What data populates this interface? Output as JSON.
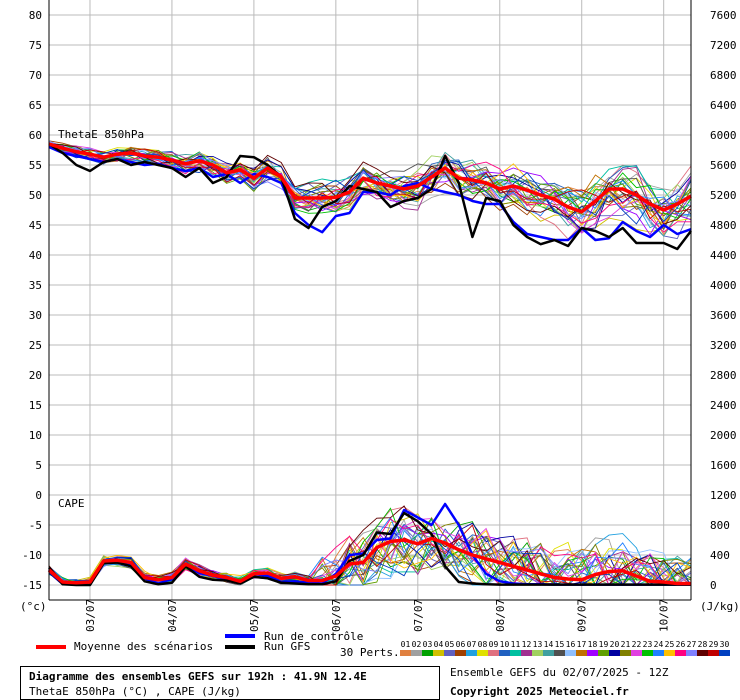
{
  "chart_data": {
    "type": "line",
    "title": "Diagramme des ensembles GEFS sur 192h : 41.9N 12.4E",
    "subtitle": "ThetaE 850hPa (°C) , CAPE (J/kg)",
    "left_axis": {
      "unit": "(°c)",
      "ticks": [
        80,
        75,
        70,
        65,
        60,
        55,
        50,
        45,
        40,
        35,
        30,
        25,
        20,
        15,
        10,
        5,
        0,
        -5,
        -10,
        -15
      ]
    },
    "right_axis": {
      "unit": "(J/kg)",
      "ticks": [
        7600,
        7200,
        6800,
        6400,
        6000,
        5600,
        5200,
        4800,
        4400,
        4000,
        3600,
        3200,
        2800,
        2400,
        2000,
        1600,
        1200,
        800,
        400,
        0
      ]
    },
    "x_dates": [
      "03/07",
      "04/07",
      "05/07",
      "06/07",
      "07/07",
      "08/07",
      "09/07",
      "10/07"
    ],
    "panel_labels": {
      "thetae": "ThetaE 850hPa",
      "cape": "CAPE"
    },
    "series": [
      {
        "name": "Moyenne des scénarios",
        "color": "#ff0000",
        "thetae": [
          58.5,
          57.8,
          57.2,
          56.8,
          56.3,
          56.8,
          57.0,
          56.5,
          56.3,
          55.8,
          55.2,
          55.7,
          55.0,
          53.7,
          54.2,
          52.8,
          54.5,
          53.0,
          49.5,
          49.5,
          49.5,
          49.6,
          50.5,
          52.8,
          52.0,
          51.5,
          51.0,
          51.5,
          53.0,
          54.5,
          52.8,
          52.5,
          52.0,
          51.0,
          51.5,
          50.8,
          50.0,
          49.3,
          48.0,
          47.2,
          49.0,
          51.0,
          51.0,
          50.0,
          48.5,
          47.5,
          48.5,
          49.8
        ],
        "cape": [
          200,
          40,
          30,
          40,
          320,
          330,
          300,
          100,
          70,
          100,
          280,
          190,
          130,
          100,
          50,
          150,
          160,
          90,
          110,
          60,
          60,
          120,
          280,
          300,
          500,
          580,
          600,
          550,
          620,
          560,
          470,
          400,
          350,
          300,
          250,
          200,
          150,
          100,
          80,
          70,
          140,
          180,
          190,
          120,
          50,
          40,
          20,
          20
        ]
      },
      {
        "name": "Run de contrôle",
        "color": "#0000ff",
        "thetae": [
          58.0,
          57.0,
          56.5,
          56.0,
          55.5,
          56.0,
          55.5,
          55.0,
          55.2,
          54.5,
          54.0,
          54.5,
          53.0,
          53.5,
          52.0,
          53.5,
          53.0,
          52.0,
          47.0,
          45.0,
          43.8,
          46.5,
          47.0,
          50.5,
          50.5,
          50.0,
          51.5,
          52.0,
          51.0,
          50.5,
          50.0,
          49.0,
          48.5,
          48.5,
          45.5,
          43.5,
          43.0,
          42.5,
          42.5,
          44.5,
          42.5,
          42.8,
          45.5,
          44.0,
          43.0,
          45.0,
          43.5,
          44.3
        ],
        "cape": [
          210,
          20,
          10,
          40,
          320,
          320,
          260,
          90,
          20,
          80,
          270,
          160,
          120,
          80,
          30,
          150,
          120,
          40,
          50,
          30,
          20,
          150,
          400,
          420,
          600,
          620,
          1000,
          900,
          800,
          1080,
          800,
          400,
          150,
          50,
          20,
          10,
          10,
          5,
          5,
          5,
          5,
          5,
          5,
          5,
          5,
          5,
          5,
          5
        ]
      },
      {
        "name": "Run GFS",
        "color": "#000000",
        "thetae": [
          58.5,
          57.0,
          55.0,
          54.0,
          55.5,
          56.0,
          55.0,
          55.5,
          55.0,
          54.5,
          53.0,
          54.5,
          52.0,
          53.0,
          56.5,
          56.3,
          55.0,
          53.0,
          46.0,
          44.5,
          48.0,
          49.0,
          51.5,
          51.0,
          50.5,
          48.0,
          49.0,
          49.5,
          51.0,
          56.5,
          52.0,
          43.0,
          49.5,
          49.0,
          45.0,
          43.0,
          41.8,
          42.5,
          41.5,
          44.5,
          44.0,
          43.0,
          44.5,
          42.0,
          42.0,
          42.0,
          41.0,
          44.0
        ],
        "cape": [
          230,
          10,
          0,
          0,
          290,
          300,
          250,
          50,
          10,
          30,
          250,
          110,
          70,
          60,
          20,
          110,
          90,
          30,
          20,
          10,
          10,
          50,
          320,
          400,
          700,
          680,
          960,
          850,
          680,
          250,
          40,
          20,
          10,
          5,
          5,
          5,
          5,
          5,
          5,
          5,
          5,
          5,
          5,
          5,
          5,
          5,
          5,
          5
        ]
      }
    ],
    "xlim": [
      0,
      47
    ],
    "left_ylim": [
      -17.5,
      82.5
    ],
    "right_ylim": [
      -200,
      7800
    ]
  },
  "legend": {
    "mean": "Moyenne des scénarios",
    "control": "Run de contrôle",
    "gfs": "Run GFS",
    "perts": "30 Perts.",
    "colors": {
      "mean": "#ff0000",
      "control": "#0000ff",
      "gfs": "#000000"
    }
  },
  "perturbations": {
    "labels": [
      "01",
      "02",
      "03",
      "04",
      "05",
      "06",
      "07",
      "08",
      "09",
      "10",
      "11",
      "12",
      "13",
      "14",
      "15",
      "16",
      "17",
      "18",
      "19",
      "20",
      "21",
      "22",
      "23",
      "24",
      "25",
      "26",
      "27",
      "28",
      "29",
      "30"
    ],
    "colors": [
      "#e08040",
      "#a0a0a0",
      "#00a000",
      "#d0c000",
      "#6060c0",
      "#a04000",
      "#20a0e0",
      "#e0e000",
      "#e07080",
      "#2060c0",
      "#00c0a0",
      "#a03090",
      "#a0d060",
      "#40a0a0",
      "#505050",
      "#90c0ff",
      "#c07000",
      "#a000ff",
      "#60a000",
      "#0000a0",
      "#808000",
      "#e040e0",
      "#00c000",
      "#2080ff",
      "#ffc000",
      "#ff0080",
      "#8080ff",
      "#600000",
      "#c00000",
      "#0040c0"
    ]
  },
  "info": {
    "title": "Diagramme des ensembles GEFS sur 192h : 41.9N 12.4E",
    "subtitle": "ThetaE 850hPa (°C) , CAPE (J/kg)",
    "ensemble": "Ensemble GEFS du 02/07/2025 - 12Z",
    "copyright": "Copyright 2025 Meteociel.fr"
  }
}
